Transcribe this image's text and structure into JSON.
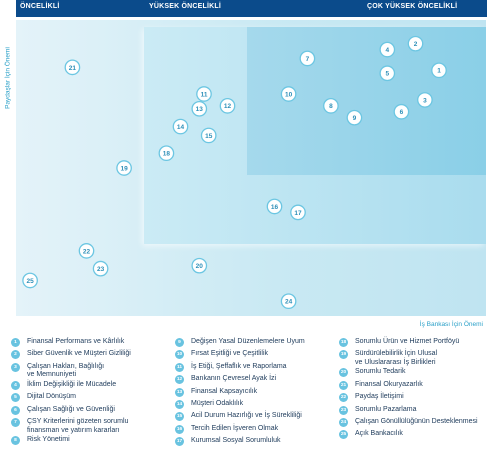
{
  "header": {
    "low": "ÖNCELİKLİ",
    "mid": "YÜKSEK ÖNCELİKLİ",
    "high": "ÇOK YÜKSEK ÖNCELİKLİ"
  },
  "colors": {
    "header_bg": "#0b4b8b",
    "bubble_fill": "#ffffff",
    "bubble_border": "#6cc6e2",
    "bubble_text": "#2d8fb8",
    "legend_badge": "#69c3e0"
  },
  "chart_data": {
    "type": "scatter",
    "xlabel": "İş Bankası İçin Önemi",
    "ylabel": "Paydaşlar İçin Önemi",
    "points": [
      {
        "id": "1",
        "x": 0.9,
        "y": 0.83
      },
      {
        "id": "2",
        "x": 0.85,
        "y": 0.92
      },
      {
        "id": "3",
        "x": 0.87,
        "y": 0.73
      },
      {
        "id": "4",
        "x": 0.79,
        "y": 0.9
      },
      {
        "id": "5",
        "x": 0.79,
        "y": 0.82
      },
      {
        "id": "6",
        "x": 0.82,
        "y": 0.69
      },
      {
        "id": "7",
        "x": 0.62,
        "y": 0.87
      },
      {
        "id": "8",
        "x": 0.67,
        "y": 0.71
      },
      {
        "id": "9",
        "x": 0.72,
        "y": 0.67
      },
      {
        "id": "10",
        "x": 0.58,
        "y": 0.75
      },
      {
        "id": "11",
        "x": 0.4,
        "y": 0.75
      },
      {
        "id": "12",
        "x": 0.45,
        "y": 0.71
      },
      {
        "id": "13",
        "x": 0.39,
        "y": 0.7
      },
      {
        "id": "14",
        "x": 0.35,
        "y": 0.64
      },
      {
        "id": "15",
        "x": 0.41,
        "y": 0.61
      },
      {
        "id": "16",
        "x": 0.55,
        "y": 0.37
      },
      {
        "id": "17",
        "x": 0.6,
        "y": 0.35
      },
      {
        "id": "18",
        "x": 0.32,
        "y": 0.55
      },
      {
        "id": "19",
        "x": 0.23,
        "y": 0.5
      },
      {
        "id": "20",
        "x": 0.39,
        "y": 0.17
      },
      {
        "id": "21",
        "x": 0.12,
        "y": 0.84
      },
      {
        "id": "22",
        "x": 0.15,
        "y": 0.22
      },
      {
        "id": "23",
        "x": 0.18,
        "y": 0.16
      },
      {
        "id": "24",
        "x": 0.58,
        "y": 0.05
      },
      {
        "id": "25",
        "x": 0.03,
        "y": 0.12
      }
    ],
    "zones": [
      "ÖNCELİKLİ",
      "YÜKSEK ÖNCELİKLİ",
      "ÇOK YÜKSEK ÖNCELİKLİ"
    ],
    "grid": false
  },
  "legend": {
    "col1": [
      {
        "id": "1",
        "text": "Finansal Performans ve Kârlılık"
      },
      {
        "id": "2",
        "text": "Siber Güvenlik ve Müşteri Gizliliği"
      },
      {
        "id": "3",
        "text": "Çalışan Hakları, Bağlılığı\nve Memnuniyeti"
      },
      {
        "id": "4",
        "text": "İklim Değişikliği ile Mücadele"
      },
      {
        "id": "5",
        "text": "Dijital Dönüşüm"
      },
      {
        "id": "6",
        "text": "Çalışan Sağlığı ve Güvenliği"
      },
      {
        "id": "7",
        "text": "ÇSY Kriterlerini gözeten sorumlu\nfinansman ve yatırım kararları"
      },
      {
        "id": "8",
        "text": "Risk Yönetimi"
      }
    ],
    "col2": [
      {
        "id": "9",
        "text": "Değişen Yasal Düzenlemelere Uyum"
      },
      {
        "id": "10",
        "text": "Fırsat Eşitliği ve Çeşitlilik"
      },
      {
        "id": "11",
        "text": "İş Etiği, Şeffaflık ve Raporlama"
      },
      {
        "id": "12",
        "text": "Bankanın Çevresel Ayak İzi"
      },
      {
        "id": "13",
        "text": "Finansal Kapsayıcılık"
      },
      {
        "id": "14",
        "text": "Müşteri Odaklılık"
      },
      {
        "id": "15",
        "text": "Acil Durum Hazırlığı ve İş Sürekliliği"
      },
      {
        "id": "16",
        "text": "Tercih Edilen İşveren Olmak"
      },
      {
        "id": "17",
        "text": "Kurumsal Sosyal Sorumluluk"
      }
    ],
    "col3": [
      {
        "id": "18",
        "text": "Sorumlu Ürün ve Hizmet Portföyü"
      },
      {
        "id": "19",
        "text": "Sürdürülebilirlik İçin Ulusal\nve Uluslararası İş Birlikleri"
      },
      {
        "id": "20",
        "text": "Sorumlu Tedarik"
      },
      {
        "id": "21",
        "text": "Finansal Okuryazarlık"
      },
      {
        "id": "22",
        "text": "Paydaş İletişimi"
      },
      {
        "id": "23",
        "text": "Sorumlu Pazarlama"
      },
      {
        "id": "24",
        "text": "Çalışan Gönüllülüğünün Desteklenmesi"
      },
      {
        "id": "25",
        "text": "Açık Bankacılık"
      }
    ]
  }
}
